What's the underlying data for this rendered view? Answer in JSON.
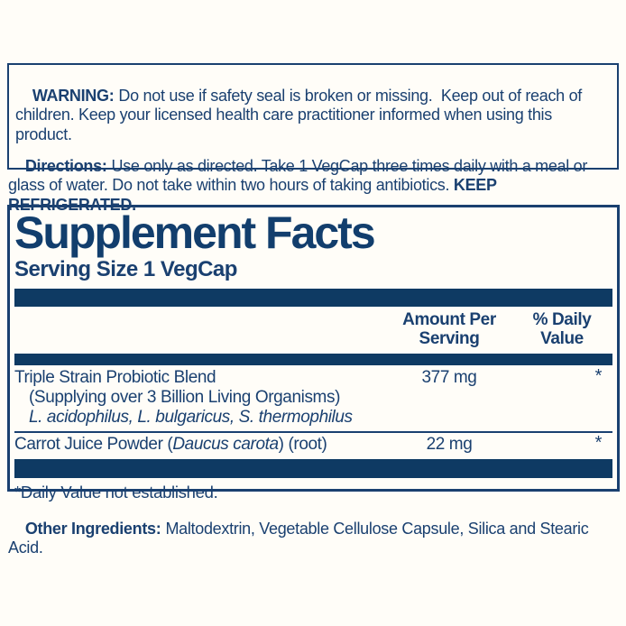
{
  "colors": {
    "navy_text": "#1a4070",
    "bar_navy": "#0e3a63",
    "background": "#fffdf8"
  },
  "warning": {
    "label": "WARNING:",
    "text": "Do not use if safety seal is broken or missing.  Keep out of reach of children. Keep your licensed health care practitioner informed when using this product."
  },
  "directions": {
    "label": "Directions:",
    "text": "Use only as directed. Take 1 VegCap three times daily with a meal or glass of water. Do not take within two hours of taking antibiotics. ",
    "emphasis": "KEEP REFRIGERATED."
  },
  "supplement_facts": {
    "title": "Supplement Facts",
    "serving_size": "Serving Size 1 VegCap",
    "columns": {
      "amount": "Amount Per\nServing",
      "daily_value": "% Daily\nValue"
    },
    "rows": [
      {
        "name": "Triple Strain Probiotic Blend",
        "amount": "377 mg",
        "daily_value": "*",
        "note": "(Supplying over 3 Billion Living Organisms)",
        "strains": "L. acidophilus, L. bulgaricus, S. thermophilus"
      },
      {
        "name_prefix": "Carrot Juice Powder (",
        "name_latin": "Daucus carota",
        "name_suffix": ") (root)",
        "amount": "22 mg",
        "daily_value": "*"
      }
    ],
    "footnote": "*Daily Value not established."
  },
  "other_ingredients": {
    "label": "Other Ingredients:",
    "text": "Maltodextrin, Vegetable Cellulose Capsule, Silica and Stearic Acid."
  }
}
